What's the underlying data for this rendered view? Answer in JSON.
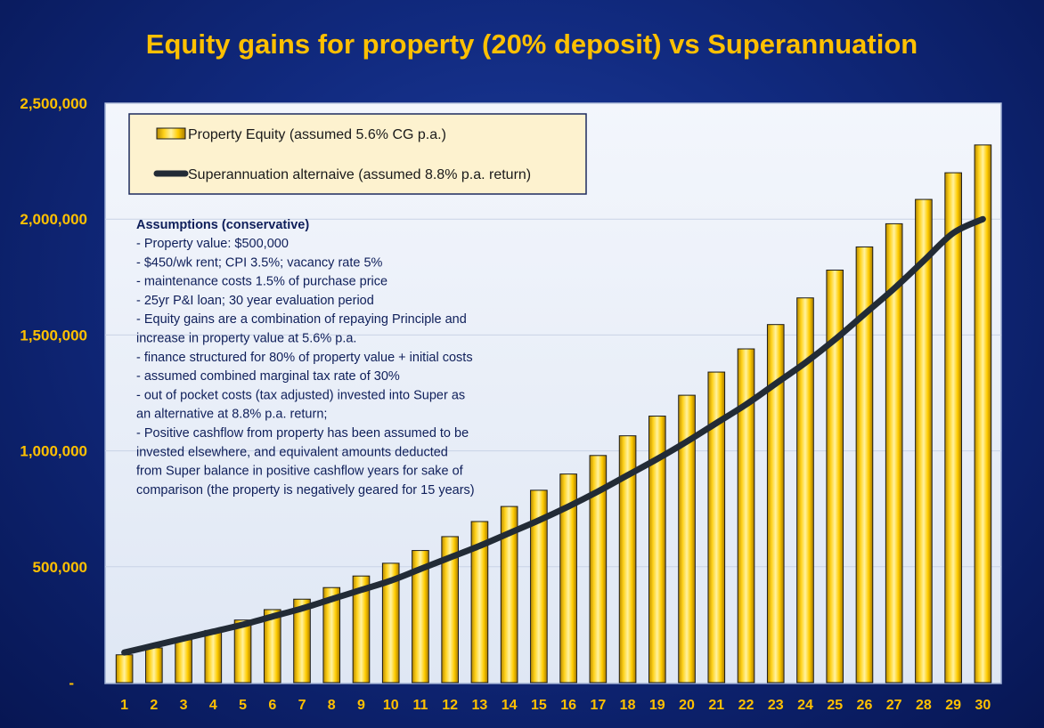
{
  "colors": {
    "bar_fill": "#ffcc00",
    "bar_edge": "#1a1a1a",
    "line": "#222b36",
    "plot_bg": "#e9eff8",
    "legend_bg": "#fdf2cf",
    "label": "#ffc000"
  },
  "legend": {
    "bar_icon": "gold-bar-swatch-icon",
    "line_icon": "dark-line-swatch-icon"
  },
  "assumptions": {
    "title": "Assumptions (conservative)",
    "lines": [
      "- Property value: $500,000",
      "- $450/wk rent; CPI 3.5%; vacancy rate 5%",
      "- maintenance costs 1.5% of purchase price",
      "- 25yr P&I loan; 30 year evaluation period",
      "- Equity gains are a combination of repaying Principle and",
      "increase in property value at 5.6% p.a.",
      "- finance structured for 80% of property value + initial costs",
      "- assumed combined marginal tax rate of 30%",
      "- out of pocket costs (tax adjusted) invested into Super as",
      "an alternative at 8.8% p.a. return;",
      "- Positive cashflow from property has been assumed to be",
      "invested elsewhere, and equivalent amounts deducted",
      "from Super balance in positive cashflow years for sake of",
      "comparison (the property is negatively geared for 15 years)"
    ]
  },
  "chart_data": {
    "type": "bar",
    "title": "Equity gains for property (20% deposit) vs Superannuation",
    "xlabel": "",
    "ylabel": "",
    "ylim": [
      0,
      2500000
    ],
    "y_ticks": [
      0,
      500000,
      1000000,
      1500000,
      2000000,
      2500000
    ],
    "y_tick_labels": [
      "-",
      "500,000",
      "1,000,000",
      "1,500,000",
      "2,000,000",
      "2,500,000"
    ],
    "categories": [
      "1",
      "2",
      "3",
      "4",
      "5",
      "6",
      "7",
      "8",
      "9",
      "10",
      "11",
      "12",
      "13",
      "14",
      "15",
      "16",
      "17",
      "18",
      "19",
      "20",
      "21",
      "22",
      "23",
      "24",
      "25",
      "26",
      "27",
      "28",
      "29",
      "30"
    ],
    "grid": true,
    "legend_position": "top-left",
    "series": [
      {
        "name": "Property Equity (assumed 5.6% CG p.a.)",
        "type": "bar",
        "values": [
          120000,
          150000,
          185000,
          225000,
          270000,
          315000,
          360000,
          410000,
          460000,
          515000,
          570000,
          630000,
          695000,
          760000,
          830000,
          900000,
          980000,
          1065000,
          1150000,
          1240000,
          1340000,
          1440000,
          1545000,
          1660000,
          1780000,
          1880000,
          1980000,
          2085000,
          2200000,
          2320000
        ]
      },
      {
        "name": "Superannuation alternaive (assumed 8.8% p.a. return)",
        "type": "line",
        "values": [
          130000,
          160000,
          190000,
          220000,
          250000,
          285000,
          320000,
          360000,
          400000,
          440000,
          490000,
          540000,
          590000,
          645000,
          700000,
          760000,
          825000,
          895000,
          965000,
          1040000,
          1120000,
          1200000,
          1290000,
          1380000,
          1480000,
          1590000,
          1700000,
          1820000,
          1940000,
          2000000
        ]
      }
    ]
  }
}
